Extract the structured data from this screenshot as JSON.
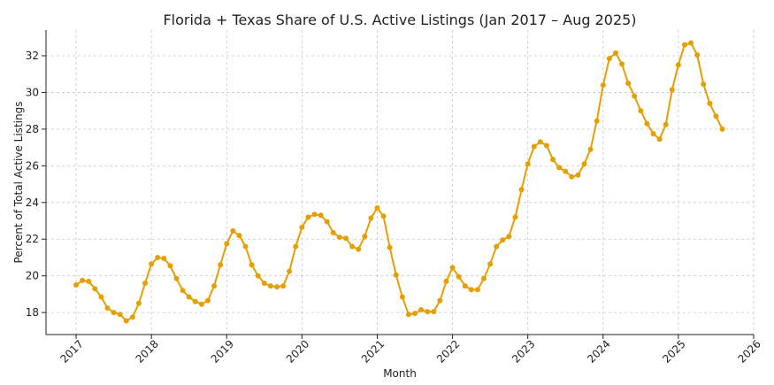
{
  "chart_data": {
    "type": "line",
    "title": "Florida + Texas Share of U.S. Active Listings (Jan 2017 – Aug 2025)",
    "xlabel": "Month",
    "ylabel": "Percent of Total Active Listings",
    "xlim": [
      2016.6,
      2026.0
    ],
    "ylim": [
      16.8,
      33.4
    ],
    "x_ticks": [
      2017,
      2018,
      2019,
      2020,
      2021,
      2022,
      2023,
      2024,
      2025,
      2026
    ],
    "y_ticks": [
      18,
      20,
      22,
      24,
      26,
      28,
      30,
      32
    ],
    "grid": true,
    "color": "#e69f00",
    "series": [
      {
        "x_start": "2017-01",
        "values": [
          19.5,
          19.75,
          19.7,
          19.3,
          18.85,
          18.25,
          18.0,
          17.9,
          17.55,
          17.75,
          18.5,
          19.6,
          20.65,
          21.0,
          20.95,
          20.55,
          19.85,
          19.2,
          18.85,
          18.6,
          18.45,
          18.65,
          19.45,
          20.6,
          21.75,
          22.45,
          22.2,
          21.6,
          20.6,
          20.0,
          19.6,
          19.45,
          19.4,
          19.45,
          20.25,
          21.6,
          22.65,
          23.2,
          23.35,
          23.3,
          22.95,
          22.35,
          22.1,
          22.05,
          21.6,
          21.45,
          22.15,
          23.15,
          23.7,
          23.25,
          21.55,
          20.05,
          18.85,
          17.9,
          17.95,
          18.15,
          18.05,
          18.05,
          18.65,
          19.7,
          20.45,
          19.95,
          19.45,
          19.25,
          19.25,
          19.85,
          20.65,
          21.6,
          21.95,
          22.15,
          23.2,
          24.7,
          26.1,
          27.05,
          27.3,
          27.1,
          26.35,
          25.9,
          25.7,
          25.4,
          25.5,
          26.1,
          26.9,
          28.45,
          30.4,
          31.85,
          32.15,
          31.55,
          30.5,
          29.8,
          29.0,
          28.3,
          27.75,
          27.45,
          28.25,
          30.15,
          31.5,
          32.6,
          32.7,
          32.05,
          30.45,
          29.4,
          28.7,
          28.0
        ]
      }
    ]
  }
}
